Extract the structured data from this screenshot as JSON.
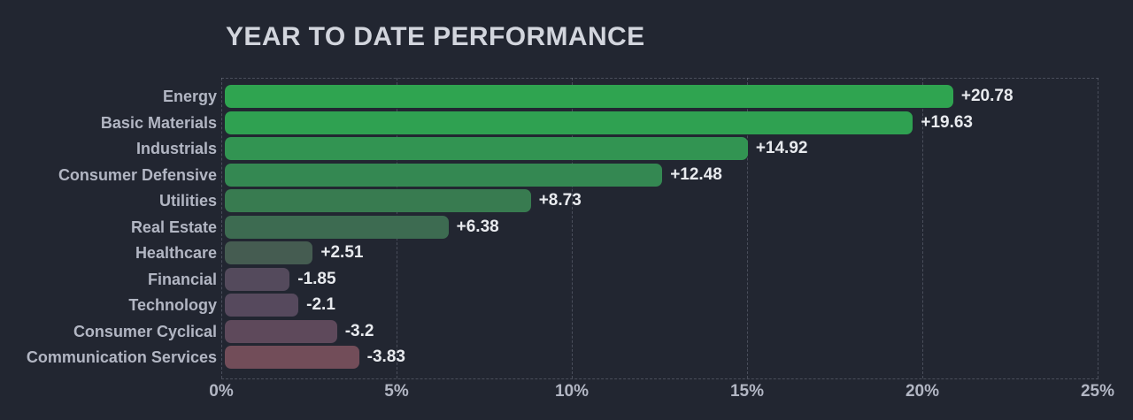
{
  "title": "YEAR TO DATE PERFORMANCE",
  "colors": {
    "background": "#222631",
    "title": "#d2d5dd",
    "category_label": "#b2b6c3",
    "value_label": "#e8eaee",
    "tick_label": "#b2b6c3",
    "grid": "rgba(158,165,181,0.32)"
  },
  "chart_data": {
    "type": "bar",
    "orientation": "horizontal",
    "title": "YEAR TO DATE PERFORMANCE",
    "xlabel": "",
    "ylabel": "",
    "xlim": [
      0,
      25
    ],
    "xticks": [
      0,
      5,
      10,
      15,
      20,
      25
    ],
    "xtick_labels": [
      "0%",
      "5%",
      "10%",
      "15%",
      "20%",
      "25%"
    ],
    "grid": "dashed-vertical",
    "legend": "none",
    "note": "bar length encodes absolute value; color encodes gain (green) vs loss (red/mauve)",
    "categories": [
      "Energy",
      "Basic Materials",
      "Industrials",
      "Consumer Defensive",
      "Utilities",
      "Real Estate",
      "Healthcare",
      "Financial",
      "Technology",
      "Consumer Cyclical",
      "Communication Services"
    ],
    "values": [
      20.78,
      19.63,
      14.92,
      12.48,
      8.73,
      6.38,
      2.51,
      -1.85,
      -2.1,
      -3.2,
      -3.83
    ],
    "value_labels": [
      "+20.78",
      "+19.63",
      "+14.92",
      "+12.48",
      "+8.73",
      "+6.38",
      "+2.51",
      "-1.85",
      "-2.1",
      "-3.2",
      "-3.83"
    ],
    "bar_colors": [
      "#2fa450",
      "#2fa151",
      "#329452",
      "#348852",
      "#387b50",
      "#3d6b51",
      "#455c51",
      "#544a5c",
      "#56495d",
      "#5e495b",
      "#724d59"
    ]
  }
}
